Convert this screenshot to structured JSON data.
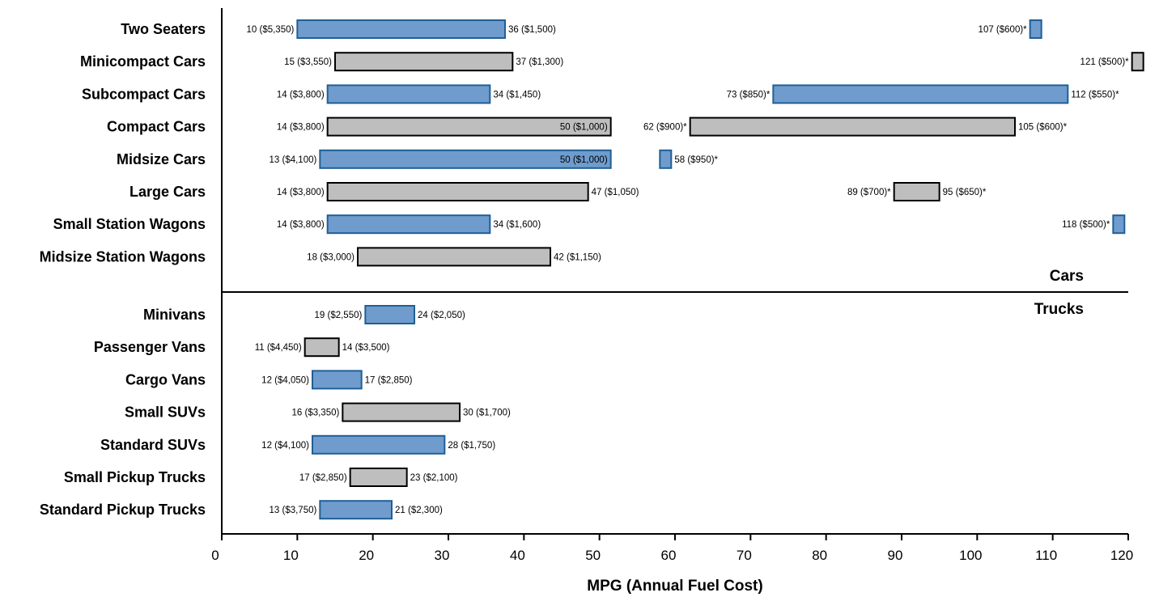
{
  "chart_data": {
    "type": "bar",
    "subtype": "floating-range",
    "title": "",
    "xlabel": "MPG (Annual Fuel Cost)",
    "ylabel": "",
    "xlim": [
      0,
      120
    ],
    "xticks": [
      0,
      10,
      20,
      30,
      40,
      50,
      60,
      70,
      80,
      90,
      100,
      110,
      120
    ],
    "grid": false,
    "colors": {
      "blue_fill": "#6f9ccd",
      "blue_edge": "#1f5f96",
      "gray_fill": "#bebebe",
      "gray_edge": "#000000"
    },
    "sections": [
      {
        "name": "Cars",
        "label_position": "above-divider"
      },
      {
        "name": "Trucks",
        "label_position": "below-divider"
      }
    ],
    "categories": [
      {
        "name": "Two Seaters",
        "section": "Cars",
        "color": "blue",
        "ranges": [
          {
            "min": 10,
            "max": 37.5,
            "min_label": "10 ($5,350)",
            "max_label": "36 ($1,500)"
          },
          {
            "min": 107,
            "max": 108.5,
            "min_label": "107 ($600)*",
            "max_label": ""
          }
        ]
      },
      {
        "name": "Minicompact Cars",
        "section": "Cars",
        "color": "gray",
        "ranges": [
          {
            "min": 15,
            "max": 38.5,
            "min_label": "15 ($3,550)",
            "max_label": "37 ($1,300)"
          },
          {
            "min": 120.5,
            "max": 122,
            "min_label": "121 ($500)*",
            "max_label": ""
          }
        ]
      },
      {
        "name": "Subcompact Cars",
        "section": "Cars",
        "color": "blue",
        "ranges": [
          {
            "min": 14,
            "max": 35.5,
            "min_label": "14 ($3,800)",
            "max_label": "34 ($1,450)"
          },
          {
            "min": 73,
            "max": 112,
            "min_label": "73 ($850)*",
            "max_label": "112 ($550)*"
          }
        ]
      },
      {
        "name": "Compact Cars",
        "section": "Cars",
        "color": "gray",
        "ranges": [
          {
            "min": 14,
            "max": 51.5,
            "min_label": "14 ($3,800)",
            "max_label": "50 ($1,000)",
            "max_label_inside": true
          },
          {
            "min": 62,
            "max": 105,
            "min_label": "62 ($900)*",
            "max_label": "105 ($600)*"
          }
        ]
      },
      {
        "name": "Midsize Cars",
        "section": "Cars",
        "color": "blue",
        "ranges": [
          {
            "min": 13,
            "max": 51.5,
            "min_label": "13 ($4,100)",
            "max_label": "50 ($1,000)",
            "max_label_inside": true
          },
          {
            "min": 58,
            "max": 59.5,
            "min_label": "",
            "max_label": "58 ($950)*"
          }
        ]
      },
      {
        "name": "Large Cars",
        "section": "Cars",
        "color": "gray",
        "ranges": [
          {
            "min": 14,
            "max": 48.5,
            "min_label": "14 ($3,800)",
            "max_label": "47 ($1,050)"
          },
          {
            "min": 89,
            "max": 95,
            "min_label": "89 ($700)*",
            "max_label": "95 ($650)*"
          }
        ]
      },
      {
        "name": "Small Station Wagons",
        "section": "Cars",
        "color": "blue",
        "ranges": [
          {
            "min": 14,
            "max": 35.5,
            "min_label": "14 ($3,800)",
            "max_label": "34 ($1,600)"
          },
          {
            "min": 118,
            "max": 119.5,
            "min_label": "118 ($500)*",
            "max_label": ""
          }
        ]
      },
      {
        "name": "Midsize Station Wagons",
        "section": "Cars",
        "color": "gray",
        "ranges": [
          {
            "min": 18,
            "max": 43.5,
            "min_label": "18 ($3,000)",
            "max_label": "42 ($1,150)"
          }
        ]
      },
      {
        "name": "Minivans",
        "section": "Trucks",
        "color": "blue",
        "ranges": [
          {
            "min": 19,
            "max": 25.5,
            "min_label": "19 ($2,550)",
            "max_label": "24 ($2,050)"
          }
        ]
      },
      {
        "name": "Passenger Vans",
        "section": "Trucks",
        "color": "gray",
        "ranges": [
          {
            "min": 11,
            "max": 15.5,
            "min_label": "11 ($4,450)",
            "max_label": "14 ($3,500)"
          }
        ]
      },
      {
        "name": "Cargo Vans",
        "section": "Trucks",
        "color": "blue",
        "ranges": [
          {
            "min": 12,
            "max": 18.5,
            "min_label": "12 ($4,050)",
            "max_label": "17 ($2,850)"
          }
        ]
      },
      {
        "name": "Small SUVs",
        "section": "Trucks",
        "color": "gray",
        "ranges": [
          {
            "min": 16,
            "max": 31.5,
            "min_label": "16 ($3,350)",
            "max_label": "30 ($1,700)"
          }
        ]
      },
      {
        "name": "Standard SUVs",
        "section": "Trucks",
        "color": "blue",
        "ranges": [
          {
            "min": 12,
            "max": 29.5,
            "min_label": "12 ($4,100)",
            "max_label": "28 ($1,750)"
          }
        ]
      },
      {
        "name": "Small Pickup Trucks",
        "section": "Trucks",
        "color": "gray",
        "ranges": [
          {
            "min": 17,
            "max": 24.5,
            "min_label": "17 ($2,850)",
            "max_label": "23 ($2,100)"
          }
        ]
      },
      {
        "name": "Standard Pickup Trucks",
        "section": "Trucks",
        "color": "blue",
        "ranges": [
          {
            "min": 13,
            "max": 22.5,
            "min_label": "13 ($3,750)",
            "max_label": "21 ($2,300)"
          }
        ]
      }
    ]
  }
}
